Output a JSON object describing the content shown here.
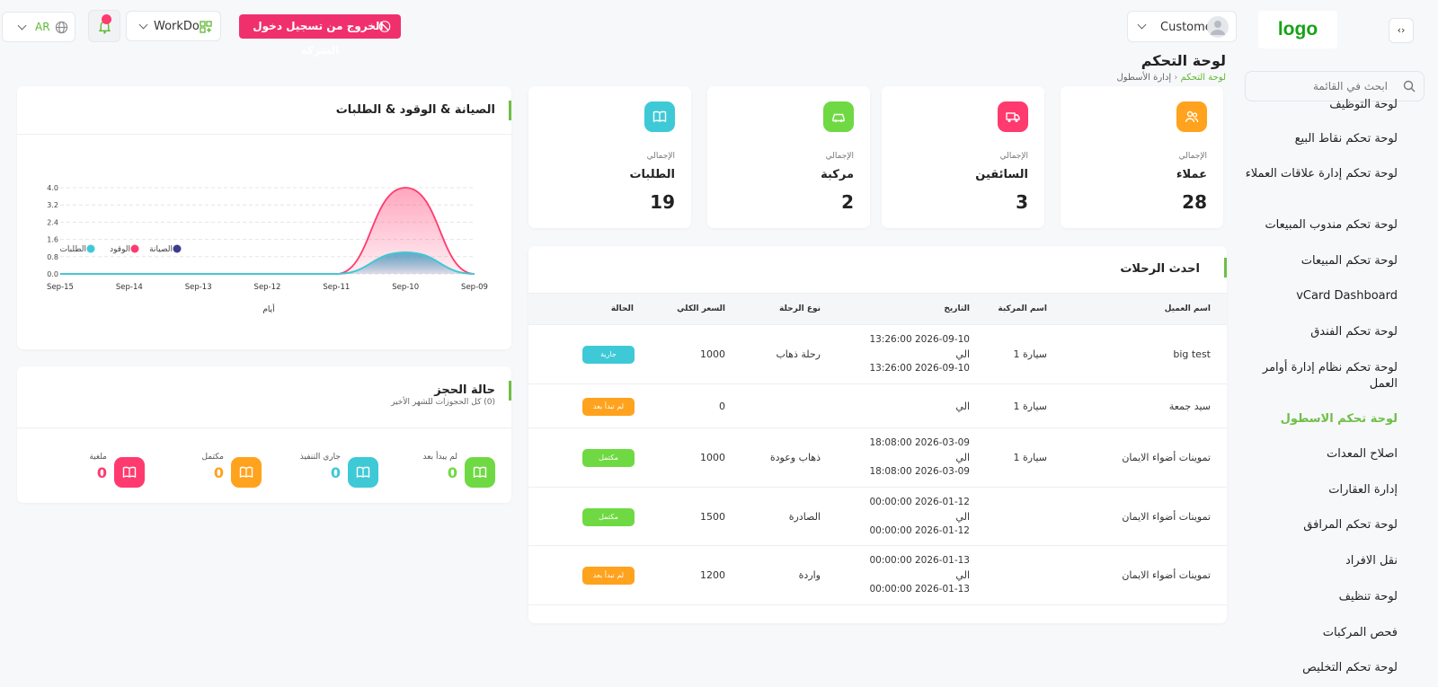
{
  "sidebar": {
    "logo": "logo",
    "search_placeholder": "ابحث في القائمة",
    "items": [
      {
        "label": "لوحة التوظيف"
      },
      {
        "label": "لوحة تحكم نقاط البيع"
      },
      {
        "label": "لوحة تحكم إدارة علاقات العملاء"
      },
      {
        "label": "لوحة تحكم مندوب المبيعات"
      },
      {
        "label": "لوحة تحكم المبيعات"
      },
      {
        "label": "vCard Dashboard"
      },
      {
        "label": "لوحة تحكم الفندق"
      },
      {
        "label": "لوحة تحكم نظام إدارة أوامر العمل"
      },
      {
        "label": "لوحة تحكم الاسطول",
        "active": true
      },
      {
        "label": "اصلاح المعدات"
      },
      {
        "label": "إدارة العقارات"
      },
      {
        "label": "لوحة تحكم المرافق"
      },
      {
        "label": "نقل الافراد"
      },
      {
        "label": "لوحة تنظيف"
      },
      {
        "label": "فحص المركبات"
      },
      {
        "label": "لوحة تحكم التخليص"
      }
    ]
  },
  "header": {
    "language": "AR",
    "workspace": "WorkDo",
    "logout_label": "الخروج من تسجيل دخول الشركة",
    "user": "Customer"
  },
  "page": {
    "title": "لوحة التحكم",
    "breadcrumb": [
      "لوحة التحكم",
      "إدارة الأسطول"
    ]
  },
  "stats": [
    {
      "caption": "الإجمالي",
      "label": "عملاء",
      "value": "28",
      "color": "#ffa21d",
      "icon": "users-icon"
    },
    {
      "caption": "الإجمالي",
      "label": "السائقين",
      "value": "3",
      "color": "#ff3a6e",
      "icon": "truck-icon"
    },
    {
      "caption": "الإجمالي",
      "label": "مركبة",
      "value": "2",
      "color": "#6fd943",
      "icon": "car-icon"
    },
    {
      "caption": "الإجمالي",
      "label": "الطلبات",
      "value": "19",
      "color": "#3ec9d6",
      "icon": "book-icon"
    }
  ],
  "trips": {
    "title": "احدث الرحلات",
    "columns": [
      "اسم العميل",
      "اسم المركبة",
      "التاريخ",
      "نوع الرحلة",
      "السعر الكلي",
      "الحالة"
    ],
    "rows": [
      {
        "customer": "big test",
        "vehicle": "سيارة 1",
        "date_from": "13:26:00 2026-09-10",
        "to": "الي",
        "date_to": "13:26:00 2026-09-10",
        "trip_type": "رحلة ذهاب",
        "price": "1000",
        "status": "جارية",
        "status_color": "#3ec9d6"
      },
      {
        "customer": "سيد جمعة",
        "vehicle": "سيارة 1",
        "date_from": "",
        "to": "الي",
        "date_to": "",
        "trip_type": "",
        "price": "0",
        "status": "لم تبدأ بعد",
        "status_color": "#ffa21d"
      },
      {
        "customer": "تموينات أضواء الايمان",
        "vehicle": "سيارة 1",
        "date_from": "18:08:00 2026-03-09",
        "to": "الي",
        "date_to": "18:08:00 2026-03-09",
        "trip_type": "ذهاب وعودة",
        "price": "1000",
        "status": "مكتمل",
        "status_color": "#6fd943"
      },
      {
        "customer": "تموينات أضواء الايمان",
        "vehicle": "",
        "date_from": "00:00:00 2026-01-12",
        "to": "الي",
        "date_to": "00:00:00 2026-01-12",
        "trip_type": "الصادرة",
        "price": "1500",
        "status": "مكتمل",
        "status_color": "#6fd943"
      },
      {
        "customer": "تموينات أضواء الايمان",
        "vehicle": "",
        "date_from": "00:00:00 2026-01-13",
        "to": "الي",
        "date_to": "00:00:00 2026-01-13",
        "trip_type": "واردة",
        "price": "1200",
        "status": "لم تبدأ بعد",
        "status_color": "#ffa21d"
      }
    ]
  },
  "chart_card": {
    "title": "الصيانة & الوقود & الطلبات"
  },
  "chart_data": {
    "type": "area",
    "x": [
      "Sep-15",
      "Sep-14",
      "Sep-13",
      "Sep-12",
      "Sep-11",
      "Sep-10",
      "Sep-09"
    ],
    "xlabel": "أيام",
    "ylabel": "",
    "ylim": [
      0,
      4.0
    ],
    "yticks": [
      "0.0",
      "0.8",
      "1.6",
      "2.4",
      "3.2",
      "4.0"
    ],
    "grid": true,
    "legend_position": "top-left",
    "series": [
      {
        "name": "الصيانة",
        "values": [
          0,
          0,
          0,
          0,
          0,
          1,
          0
        ],
        "color": "#3d3d8f"
      },
      {
        "name": "الوقود",
        "values": [
          0,
          0,
          0,
          0,
          0,
          4,
          0
        ],
        "color": "#ff3a6e"
      },
      {
        "name": "الطلبات",
        "values": [
          0,
          0,
          0,
          0,
          0,
          1,
          0
        ],
        "color": "#3ec9d6"
      }
    ]
  },
  "booking": {
    "title": "حالة الحجز",
    "subtitle": "(0) كل الحجوزات للشهر الأخير",
    "items": [
      {
        "label": "لم يبدأ بعد",
        "value": "0",
        "color": "#6fd943"
      },
      {
        "label": "جاري التنفيذ",
        "value": "0",
        "color": "#3ec9d6"
      },
      {
        "label": "مكتمل",
        "value": "0",
        "color": "#ffa21d"
      },
      {
        "label": "ملغية",
        "value": "0",
        "color": "#ff3a6e"
      }
    ]
  }
}
